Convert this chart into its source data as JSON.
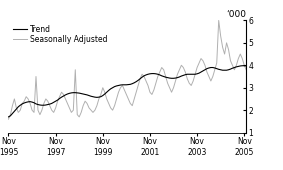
{
  "title": "",
  "ylabel_right": "‘000",
  "ylim": [
    1,
    6
  ],
  "yticks": [
    1,
    2,
    3,
    4,
    5,
    6
  ],
  "x_tick_labels": [
    "Nov\n1995",
    "Nov\n1997",
    "Nov\n1999",
    "Nov\n2001",
    "Nov\n2003",
    "Nov\n2005"
  ],
  "x_tick_positions": [
    0,
    24,
    48,
    72,
    96,
    120
  ],
  "trend_color": "#000000",
  "seasonal_color": "#b0b0b0",
  "trend_linewidth": 0.8,
  "seasonal_linewidth": 0.7,
  "legend_labels": [
    "Trend",
    "Seasonally Adjusted"
  ],
  "background_color": "#ffffff",
  "trend_data": [
    1.7,
    1.75,
    1.85,
    1.95,
    2.05,
    2.15,
    2.22,
    2.28,
    2.32,
    2.35,
    2.37,
    2.38,
    2.36,
    2.33,
    2.28,
    2.25,
    2.23,
    2.22,
    2.22,
    2.23,
    2.25,
    2.27,
    2.3,
    2.35,
    2.4,
    2.45,
    2.52,
    2.58,
    2.63,
    2.68,
    2.72,
    2.75,
    2.77,
    2.78,
    2.78,
    2.77,
    2.76,
    2.74,
    2.72,
    2.7,
    2.68,
    2.65,
    2.62,
    2.6,
    2.58,
    2.57,
    2.58,
    2.6,
    2.65,
    2.72,
    2.8,
    2.88,
    2.95,
    3.0,
    3.05,
    3.08,
    3.1,
    3.12,
    3.13,
    3.13,
    3.13,
    3.14,
    3.15,
    3.18,
    3.22,
    3.27,
    3.33,
    3.4,
    3.47,
    3.53,
    3.57,
    3.6,
    3.62,
    3.63,
    3.63,
    3.62,
    3.6,
    3.57,
    3.53,
    3.5,
    3.47,
    3.45,
    3.43,
    3.42,
    3.42,
    3.43,
    3.45,
    3.48,
    3.52,
    3.55,
    3.58,
    3.6,
    3.6,
    3.6,
    3.6,
    3.6,
    3.62,
    3.65,
    3.7,
    3.75,
    3.8,
    3.85,
    3.88,
    3.9,
    3.9,
    3.88,
    3.85,
    3.82,
    3.8,
    3.78,
    3.78,
    3.78,
    3.8,
    3.83,
    3.87,
    3.9,
    3.93,
    3.95,
    3.97,
    3.98,
    3.98,
    3.97
  ],
  "seasonal_data": [
    1.6,
    1.8,
    2.2,
    2.5,
    2.1,
    1.9,
    2.0,
    2.3,
    2.4,
    2.6,
    2.5,
    2.3,
    2.0,
    1.9,
    3.5,
    2.0,
    1.8,
    2.0,
    2.3,
    2.5,
    2.4,
    2.2,
    2.0,
    1.9,
    2.1,
    2.4,
    2.6,
    2.8,
    2.7,
    2.5,
    2.3,
    2.1,
    1.9,
    2.0,
    3.8,
    1.8,
    1.7,
    1.9,
    2.2,
    2.4,
    2.3,
    2.1,
    2.0,
    1.9,
    2.0,
    2.2,
    2.5,
    2.7,
    3.0,
    2.8,
    2.5,
    2.3,
    2.1,
    2.0,
    2.2,
    2.5,
    2.8,
    3.0,
    3.1,
    2.9,
    2.7,
    2.5,
    2.3,
    2.2,
    2.5,
    2.8,
    3.1,
    3.4,
    3.6,
    3.5,
    3.3,
    3.1,
    2.8,
    2.7,
    2.9,
    3.2,
    3.5,
    3.7,
    3.9,
    3.8,
    3.5,
    3.2,
    3.0,
    2.8,
    3.0,
    3.3,
    3.6,
    3.8,
    4.0,
    3.9,
    3.7,
    3.4,
    3.2,
    3.1,
    3.3,
    3.6,
    3.9,
    4.1,
    4.3,
    4.2,
    4.0,
    3.7,
    3.5,
    3.3,
    3.5,
    3.8,
    4.1,
    6.0,
    5.3,
    4.8,
    4.5,
    5.0,
    4.7,
    4.2,
    4.0,
    3.8,
    4.0,
    4.3,
    4.5,
    4.3,
    4.0,
    3.8
  ]
}
